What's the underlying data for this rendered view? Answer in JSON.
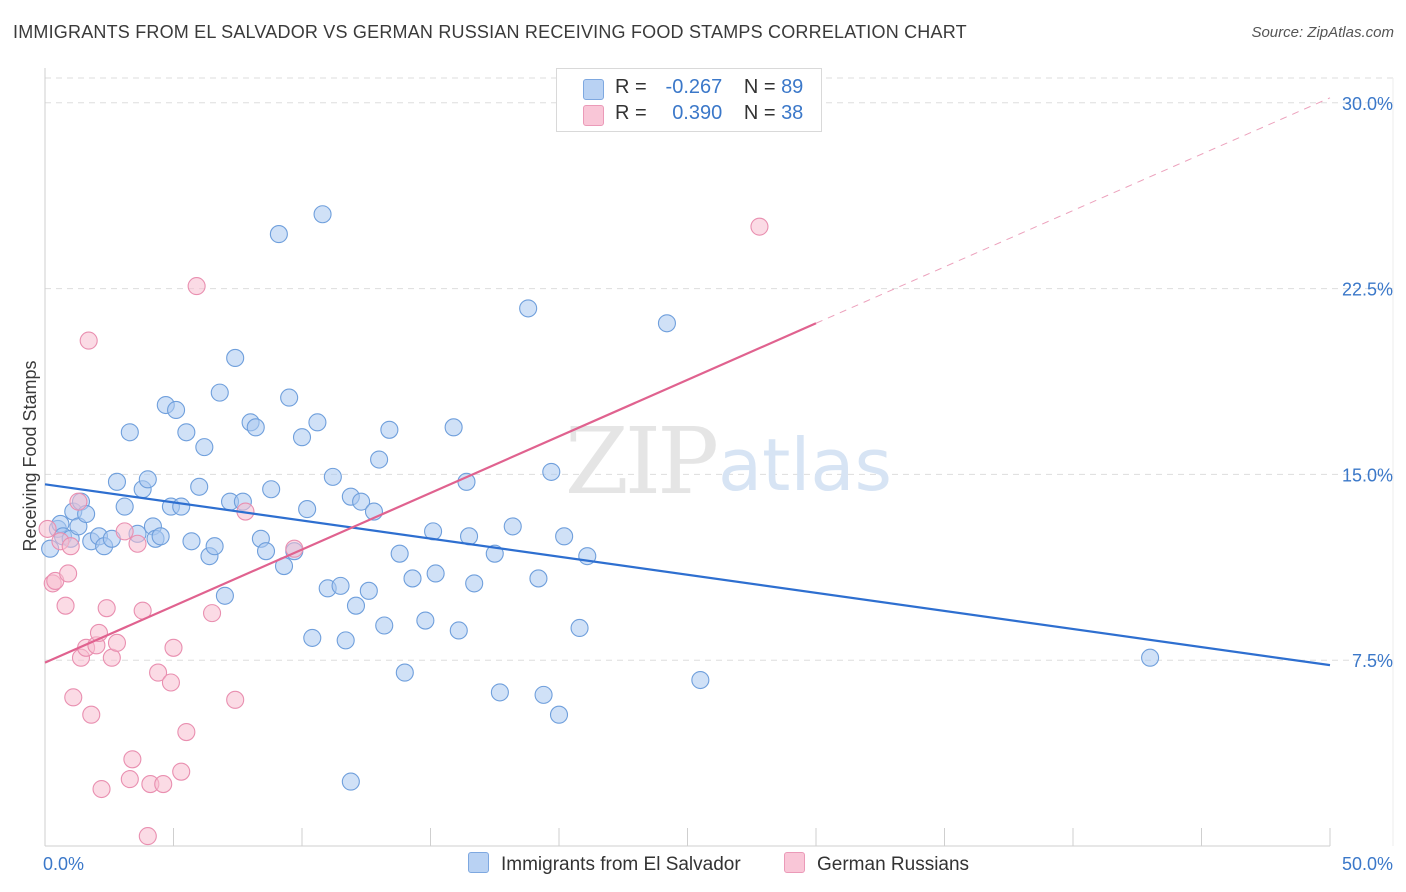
{
  "header": {
    "title": "IMMIGRANTS FROM EL SALVADOR VS GERMAN RUSSIAN RECEIVING FOOD STAMPS CORRELATION CHART",
    "source": "Source: ZipAtlas.com"
  },
  "watermark": {
    "zip": "ZIP",
    "atlas": "atlas"
  },
  "legend": {
    "rows": [
      {
        "r_label": "R =",
        "r_value": "-0.267",
        "n_label": "N =",
        "n_value": "89"
      },
      {
        "r_label": "R =",
        "r_value": "0.390",
        "n_label": "N =",
        "n_value": "38"
      }
    ]
  },
  "bottom_legend": {
    "series1": "Immigrants from El Salvador",
    "series2": "German Russians"
  },
  "chart_data": {
    "type": "scatter",
    "title": "IMMIGRANTS FROM EL SALVADOR VS GERMAN RUSSIAN RECEIVING FOOD STAMPS CORRELATION CHART",
    "xlabel": "",
    "ylabel": "Receiving Food Stamps",
    "xlim": [
      0,
      50
    ],
    "ylim": [
      0,
      31
    ],
    "x_tick_labels": [
      "0.0%",
      "50.0%"
    ],
    "y_ticks": [
      7.5,
      15,
      22.5,
      30
    ],
    "y_tick_labels": [
      "7.5%",
      "15.0%",
      "22.5%",
      "30.0%"
    ],
    "grid": true,
    "legend_position": "top-center",
    "colors": {
      "blue_fill": "#a9c8f0",
      "blue_edge": "#6f9fdc",
      "blue_line": "#2e6fd0",
      "pink_fill": "#f7bdd0",
      "pink_edge": "#e98fb0",
      "pink_line": "#e0628f",
      "tick_text": "#3b78c9",
      "grid": "#dddddd"
    },
    "series": [
      {
        "name": "Immigrants from El Salvador",
        "color": "#6f9fdc",
        "points": [
          [
            0.2,
            12.0
          ],
          [
            0.5,
            12.8
          ],
          [
            0.6,
            13.0
          ],
          [
            0.7,
            12.5
          ],
          [
            1.0,
            12.4
          ],
          [
            1.1,
            13.5
          ],
          [
            1.3,
            12.9
          ],
          [
            1.4,
            13.9
          ],
          [
            1.6,
            13.4
          ],
          [
            1.8,
            12.3
          ],
          [
            2.1,
            12.5
          ],
          [
            2.3,
            12.1
          ],
          [
            2.6,
            12.4
          ],
          [
            2.8,
            14.7
          ],
          [
            3.1,
            13.7
          ],
          [
            3.3,
            16.7
          ],
          [
            3.6,
            12.6
          ],
          [
            3.8,
            14.4
          ],
          [
            4.0,
            14.8
          ],
          [
            4.2,
            12.9
          ],
          [
            4.3,
            12.4
          ],
          [
            4.5,
            12.5
          ],
          [
            4.7,
            17.8
          ],
          [
            4.9,
            13.7
          ],
          [
            5.1,
            17.6
          ],
          [
            5.3,
            13.7
          ],
          [
            5.5,
            16.7
          ],
          [
            5.7,
            12.3
          ],
          [
            6.0,
            14.5
          ],
          [
            6.2,
            16.1
          ],
          [
            6.4,
            11.7
          ],
          [
            6.6,
            12.1
          ],
          [
            6.8,
            18.3
          ],
          [
            7.0,
            10.1
          ],
          [
            7.2,
            13.9
          ],
          [
            7.4,
            19.7
          ],
          [
            7.7,
            13.9
          ],
          [
            8.0,
            17.1
          ],
          [
            8.2,
            16.9
          ],
          [
            8.4,
            12.4
          ],
          [
            8.6,
            11.9
          ],
          [
            8.8,
            14.4
          ],
          [
            9.1,
            24.7
          ],
          [
            9.3,
            11.3
          ],
          [
            9.5,
            18.1
          ],
          [
            9.7,
            11.9
          ],
          [
            10.0,
            16.5
          ],
          [
            10.2,
            13.6
          ],
          [
            10.4,
            8.4
          ],
          [
            10.6,
            17.1
          ],
          [
            10.8,
            25.5
          ],
          [
            11.0,
            10.4
          ],
          [
            11.2,
            14.9
          ],
          [
            11.5,
            10.5
          ],
          [
            11.7,
            8.3
          ],
          [
            11.9,
            14.1
          ],
          [
            12.1,
            9.7
          ],
          [
            12.3,
            13.9
          ],
          [
            12.6,
            10.3
          ],
          [
            12.8,
            13.5
          ],
          [
            13.0,
            15.6
          ],
          [
            13.2,
            8.9
          ],
          [
            13.4,
            16.8
          ],
          [
            13.8,
            11.8
          ],
          [
            14.0,
            7.0
          ],
          [
            14.3,
            10.8
          ],
          [
            14.8,
            9.1
          ],
          [
            15.1,
            12.7
          ],
          [
            15.2,
            11.0
          ],
          [
            15.9,
            16.9
          ],
          [
            16.1,
            8.7
          ],
          [
            16.4,
            14.7
          ],
          [
            16.5,
            12.5
          ],
          [
            16.7,
            10.6
          ],
          [
            17.5,
            11.8
          ],
          [
            17.7,
            6.2
          ],
          [
            18.2,
            12.9
          ],
          [
            18.8,
            21.7
          ],
          [
            19.2,
            10.8
          ],
          [
            19.4,
            6.1
          ],
          [
            19.7,
            15.1
          ],
          [
            20.0,
            5.3
          ],
          [
            20.2,
            12.5
          ],
          [
            20.8,
            8.8
          ],
          [
            21.1,
            11.7
          ],
          [
            24.2,
            21.1
          ],
          [
            25.5,
            6.7
          ],
          [
            43.0,
            7.6
          ],
          [
            11.9,
            2.6
          ]
        ]
      },
      {
        "name": "German Russians",
        "color": "#e98fb0",
        "points": [
          [
            0.1,
            12.8
          ],
          [
            0.3,
            10.6
          ],
          [
            0.4,
            10.7
          ],
          [
            0.6,
            12.3
          ],
          [
            0.8,
            9.7
          ],
          [
            0.9,
            11.0
          ],
          [
            1.0,
            12.1
          ],
          [
            1.1,
            6.0
          ],
          [
            1.3,
            13.9
          ],
          [
            1.4,
            7.6
          ],
          [
            1.6,
            8.0
          ],
          [
            1.7,
            20.4
          ],
          [
            1.8,
            5.3
          ],
          [
            2.0,
            8.1
          ],
          [
            2.1,
            8.6
          ],
          [
            2.2,
            2.3
          ],
          [
            2.4,
            9.6
          ],
          [
            2.6,
            7.6
          ],
          [
            2.8,
            8.2
          ],
          [
            3.1,
            12.7
          ],
          [
            3.3,
            2.7
          ],
          [
            3.4,
            3.5
          ],
          [
            3.6,
            12.2
          ],
          [
            3.8,
            9.5
          ],
          [
            4.0,
            0.4
          ],
          [
            4.1,
            2.5
          ],
          [
            4.4,
            7.0
          ],
          [
            4.6,
            2.5
          ],
          [
            4.9,
            6.6
          ],
          [
            5.0,
            8.0
          ],
          [
            5.3,
            3.0
          ],
          [
            5.5,
            4.6
          ],
          [
            5.9,
            22.6
          ],
          [
            6.5,
            9.4
          ],
          [
            7.4,
            5.9
          ],
          [
            7.8,
            13.5
          ],
          [
            9.7,
            12.0
          ],
          [
            27.8,
            25.0
          ]
        ]
      }
    ],
    "trendlines": [
      {
        "series": "Immigrants from El Salvador",
        "x": [
          0,
          50
        ],
        "y": [
          14.6,
          7.3
        ]
      },
      {
        "series": "German Russians",
        "x": [
          0,
          30
        ],
        "y": [
          7.4,
          21.1
        ]
      },
      {
        "series": "German Russians",
        "style": "dashed",
        "x": [
          30,
          50
        ],
        "y": [
          21.1,
          30.2
        ]
      }
    ]
  }
}
